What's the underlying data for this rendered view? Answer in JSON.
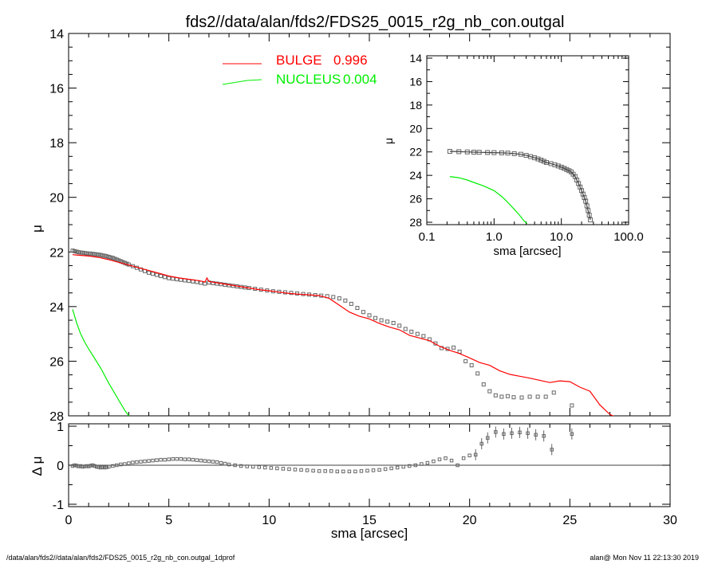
{
  "title": "fds2//data/alan/fds2/FDS25_0015_r2g_nb_con.outgal",
  "footer": {
    "left": "/data/alan/fds2//data/alan/fds2/FDS25_0015_r2g_nb_con.outgal_1dprof",
    "right": "alan@  Mon Nov 11 22:13:30 2019"
  },
  "colors": {
    "bulge": "#ff0000",
    "nucleus": "#00ee00",
    "data": "#666666",
    "axes": "#000000"
  },
  "chart_data": [
    {
      "id": "main",
      "type": "scatter",
      "ylabel": "μ",
      "xlim": [
        0,
        30
      ],
      "ylim": [
        28,
        14
      ],
      "y_inverted": true,
      "yticks": [
        "14",
        "16",
        "18",
        "20",
        "22",
        "24",
        "26",
        "28"
      ],
      "legend": {
        "placement": "top-center",
        "items": [
          {
            "label": "BULGE",
            "value": "0.996",
            "color": "#ff0000"
          },
          {
            "label": "NUCLEUS",
            "value": "0.004",
            "color": "#00ee00"
          }
        ]
      },
      "series": [
        {
          "name": "data",
          "kind": "points",
          "x": [
            0.2,
            0.3,
            0.4,
            0.5,
            0.6,
            0.7,
            0.8,
            0.9,
            1.0,
            1.1,
            1.2,
            1.3,
            1.4,
            1.5,
            1.6,
            1.7,
            1.8,
            1.9,
            2.0,
            2.1,
            2.2,
            2.3,
            2.4,
            2.5,
            2.6,
            2.7,
            2.8,
            2.9,
            3.0,
            3.2,
            3.4,
            3.6,
            3.8,
            4.0,
            4.2,
            4.4,
            4.6,
            4.8,
            5.0,
            5.2,
            5.4,
            5.6,
            5.8,
            6.0,
            6.2,
            6.4,
            6.6,
            6.8,
            7.0,
            7.2,
            7.4,
            7.6,
            7.8,
            8.0,
            8.2,
            8.4,
            8.6,
            8.8,
            9.0,
            9.3,
            9.6,
            9.9,
            10.2,
            10.5,
            10.8,
            11.1,
            11.4,
            11.7,
            12.0,
            12.3,
            12.6,
            12.9,
            13.2,
            13.5,
            13.8,
            14.1,
            14.4,
            14.7,
            15.0,
            15.3,
            15.6,
            15.9,
            16.2,
            16.5,
            16.8,
            17.1,
            17.4,
            17.7,
            18.0,
            18.3,
            18.6,
            18.9,
            19.2,
            19.5,
            19.8,
            20.1,
            20.4,
            20.7,
            21.0,
            21.3,
            21.6,
            21.9,
            22.2,
            22.6,
            23.0,
            23.4,
            23.8,
            24.2,
            25.1
          ],
          "y": [
            21.95,
            21.97,
            21.99,
            22.01,
            22.02,
            22.03,
            22.04,
            22.05,
            22.06,
            22.06,
            22.07,
            22.08,
            22.09,
            22.1,
            22.11,
            22.13,
            22.14,
            22.16,
            22.18,
            22.2,
            22.22,
            22.25,
            22.28,
            22.31,
            22.34,
            22.37,
            22.4,
            22.43,
            22.46,
            22.52,
            22.58,
            22.64,
            22.7,
            22.76,
            22.8,
            22.84,
            22.88,
            22.92,
            22.96,
            22.98,
            23.0,
            23.02,
            23.04,
            23.06,
            23.08,
            23.1,
            23.13,
            23.16,
            23.12,
            23.14,
            23.16,
            23.18,
            23.2,
            23.22,
            23.24,
            23.26,
            23.28,
            23.3,
            23.32,
            23.35,
            23.38,
            23.41,
            23.44,
            23.46,
            23.48,
            23.5,
            23.52,
            23.54,
            23.56,
            23.58,
            23.6,
            23.62,
            23.65,
            23.7,
            23.78,
            23.9,
            24.05,
            24.2,
            24.32,
            24.42,
            24.5,
            24.55,
            24.6,
            24.7,
            24.82,
            24.92,
            25.0,
            25.08,
            25.2,
            25.35,
            25.52,
            25.55,
            25.5,
            25.65,
            26.0,
            26.15,
            26.45,
            26.85,
            27.1,
            27.25,
            27.3,
            27.28,
            27.32,
            27.33,
            27.3,
            27.3,
            27.3,
            27.15,
            27.62
          ]
        },
        {
          "name": "BULGE",
          "kind": "line",
          "color": "#ff0000",
          "x": [
            0.2,
            0.5,
            1.0,
            1.5,
            2.0,
            2.5,
            3.0,
            3.5,
            4.0,
            4.5,
            5.0,
            5.5,
            6.0,
            6.5,
            6.8,
            6.9,
            7.0,
            7.5,
            8.0,
            8.5,
            9.0,
            9.5,
            10.0,
            10.5,
            11.0,
            11.5,
            12.0,
            12.5,
            13.0,
            13.5,
            14.0,
            14.5,
            15.0,
            15.5,
            16.0,
            16.5,
            17.0,
            17.5,
            18.0,
            18.5,
            19.0,
            19.5,
            20.0,
            20.5,
            21.0,
            21.5,
            22.0,
            22.5,
            23.0,
            23.5,
            24.0,
            24.5,
            25.0,
            25.5,
            26.0,
            26.5,
            27.0,
            27.3
          ],
          "y": [
            22.1,
            22.12,
            22.15,
            22.2,
            22.28,
            22.38,
            22.48,
            22.58,
            22.68,
            22.78,
            22.88,
            22.95,
            23.0,
            23.05,
            23.1,
            22.95,
            23.08,
            23.14,
            23.2,
            23.26,
            23.32,
            23.38,
            23.42,
            23.47,
            23.52,
            23.55,
            23.57,
            23.6,
            23.7,
            23.95,
            24.2,
            24.35,
            24.45,
            24.62,
            24.75,
            24.85,
            25.05,
            25.15,
            25.25,
            25.45,
            25.6,
            25.72,
            25.88,
            26.05,
            26.15,
            26.35,
            26.48,
            26.55,
            26.62,
            26.7,
            26.78,
            26.72,
            26.75,
            26.95,
            27.1,
            27.6,
            27.95,
            28.05
          ]
        },
        {
          "name": "NUCLEUS",
          "kind": "line",
          "color": "#00ee00",
          "x": [
            0.2,
            0.4,
            0.6,
            0.8,
            1.0,
            1.3,
            1.6,
            2.0,
            2.4,
            2.8,
            3.1
          ],
          "y": [
            24.1,
            24.6,
            25.0,
            25.3,
            25.55,
            25.9,
            26.25,
            26.8,
            27.3,
            27.8,
            28.1
          ]
        }
      ]
    },
    {
      "id": "residual",
      "type": "scatter",
      "xlabel": "sma [arcsec]",
      "ylabel": "Δ μ",
      "xlim": [
        0,
        30
      ],
      "ylim": [
        -1,
        1
      ],
      "xticks": [
        "0",
        "5",
        "10",
        "15",
        "20",
        "25",
        "30"
      ],
      "yticks": [
        "1",
        "0",
        "-1"
      ],
      "zero_line": true,
      "series": [
        {
          "name": "residual",
          "x": [
            0.2,
            0.3,
            0.4,
            0.5,
            0.6,
            0.7,
            0.8,
            0.9,
            1.0,
            1.1,
            1.2,
            1.3,
            1.4,
            1.5,
            1.6,
            1.7,
            1.8,
            1.9,
            2.0,
            2.2,
            2.4,
            2.6,
            2.8,
            3.0,
            3.2,
            3.4,
            3.6,
            3.8,
            4.0,
            4.2,
            4.4,
            4.6,
            4.8,
            5.0,
            5.2,
            5.4,
            5.6,
            5.8,
            6.0,
            6.2,
            6.4,
            6.6,
            6.8,
            7.0,
            7.2,
            7.4,
            7.6,
            7.8,
            8.0,
            8.3,
            8.6,
            8.9,
            9.2,
            9.5,
            9.8,
            10.1,
            10.4,
            10.7,
            11.0,
            11.3,
            11.6,
            11.9,
            12.2,
            12.5,
            12.8,
            13.1,
            13.4,
            13.7,
            14.0,
            14.3,
            14.6,
            14.9,
            15.2,
            15.5,
            15.8,
            16.1,
            16.4,
            16.7,
            17.0,
            17.3,
            17.6,
            17.9,
            18.2,
            18.5,
            18.8,
            19.1,
            19.4,
            19.7,
            20.0,
            20.3,
            20.6,
            20.9,
            21.3,
            21.7,
            22.1,
            22.5,
            22.9,
            23.3,
            23.7,
            24.1,
            25.1
          ],
          "y": [
            -0.02,
            0.0,
            -0.01,
            -0.03,
            -0.02,
            -0.04,
            -0.03,
            -0.02,
            -0.03,
            -0.01,
            0.0,
            -0.02,
            -0.04,
            -0.05,
            -0.06,
            -0.05,
            -0.06,
            -0.05,
            -0.04,
            -0.02,
            0.0,
            0.02,
            0.03,
            0.05,
            0.07,
            0.08,
            0.09,
            0.1,
            0.11,
            0.12,
            0.13,
            0.14,
            0.14,
            0.15,
            0.16,
            0.16,
            0.16,
            0.15,
            0.15,
            0.14,
            0.13,
            0.12,
            0.11,
            0.1,
            0.09,
            0.08,
            0.06,
            0.04,
            0.02,
            0.0,
            -0.02,
            -0.03,
            -0.04,
            -0.05,
            -0.06,
            -0.07,
            -0.08,
            -0.09,
            -0.1,
            -0.11,
            -0.12,
            -0.13,
            -0.14,
            -0.15,
            -0.15,
            -0.15,
            -0.16,
            -0.16,
            -0.16,
            -0.16,
            -0.15,
            -0.14,
            -0.13,
            -0.12,
            -0.1,
            -0.08,
            -0.06,
            -0.04,
            -0.02,
            0.0,
            0.03,
            0.06,
            0.1,
            0.15,
            0.18,
            0.12,
            0.0,
            0.18,
            0.25,
            0.27,
            0.55,
            0.7,
            0.85,
            0.8,
            0.82,
            0.84,
            0.82,
            0.78,
            0.75,
            0.4,
            0.8
          ]
        }
      ]
    },
    {
      "id": "inset",
      "type": "scatter",
      "xlabel": "sma [arcsec]",
      "ylabel": "μ",
      "xscale": "log",
      "xlim": [
        0.1,
        100.0
      ],
      "ylim": [
        28,
        14
      ],
      "y_inverted": true,
      "xticks": [
        "0.1",
        "1.0",
        "10.0",
        "100.0"
      ],
      "yticks": [
        "14",
        "16",
        "18",
        "20",
        "22",
        "24",
        "26",
        "28"
      ],
      "series": [
        {
          "name": "data",
          "x": [
            0.22,
            0.3,
            0.4,
            0.5,
            0.6,
            0.8,
            1.0,
            1.3,
            1.6,
            2.0,
            2.5,
            3.0,
            3.5,
            4.0,
            4.5,
            5.0,
            5.5,
            6.0,
            7.0,
            8.0,
            9.0,
            10.0,
            11.0,
            12.0,
            13.0,
            14.0,
            15.0,
            16.0,
            17.0,
            18.0,
            19.0,
            20.0,
            21.0,
            22.0,
            23.0,
            24.0,
            25.0,
            26.0,
            27.0
          ],
          "y": [
            21.95,
            21.98,
            22.0,
            22.02,
            22.03,
            22.05,
            22.06,
            22.08,
            22.1,
            22.15,
            22.2,
            22.3,
            22.4,
            22.5,
            22.6,
            22.7,
            22.8,
            22.9,
            23.0,
            23.1,
            23.2,
            23.3,
            23.4,
            23.5,
            23.6,
            23.7,
            23.9,
            24.1,
            24.4,
            24.7,
            25.0,
            25.3,
            25.6,
            25.9,
            26.2,
            26.6,
            27.0,
            27.4,
            27.8
          ]
        },
        {
          "name": "NUCLEUS",
          "color": "#00ee00",
          "x": [
            0.22,
            0.3,
            0.4,
            0.5,
            0.7,
            1.0,
            1.3,
            1.6,
            2.0,
            2.4,
            2.8,
            3.1
          ],
          "y": [
            24.1,
            24.2,
            24.4,
            24.6,
            24.9,
            25.3,
            25.8,
            26.3,
            26.9,
            27.4,
            27.9,
            28.1
          ]
        }
      ]
    }
  ]
}
